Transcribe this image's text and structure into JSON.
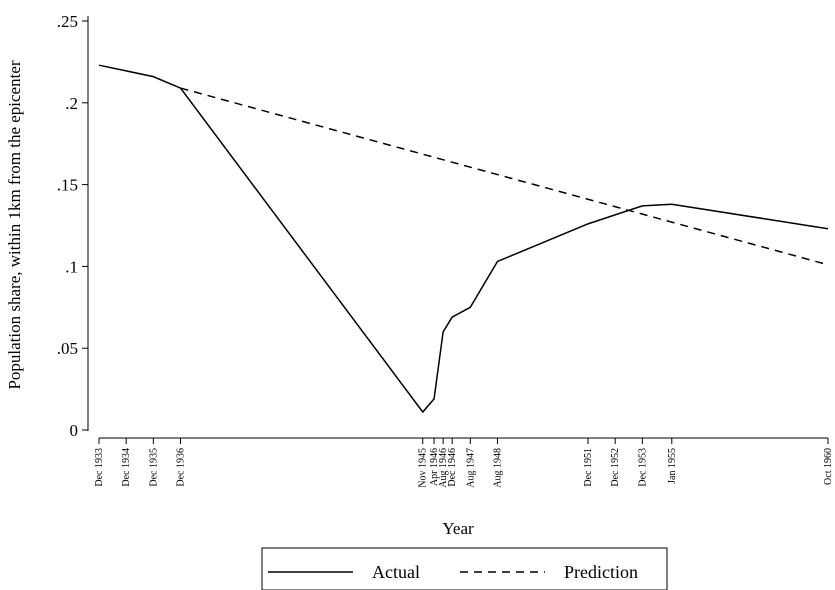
{
  "chart_data": {
    "type": "line",
    "y_label": "Population share, within 1km from the epicenter",
    "x_label": "Year",
    "xlim": [
      "Dec 1933",
      "Oct 1960"
    ],
    "xticks": [
      "Dec 1933",
      "Dec 1934",
      "Dec 1935",
      "Dec 1936",
      "Nov 1945",
      "Apr 1946",
      "Aug 1946",
      "Dec 1946",
      "Aug 1947",
      "Aug 1948",
      "Dec 1951",
      "Dec 1952",
      "Dec 1953",
      "Jan 1955",
      "Oct 1960"
    ],
    "ylim": [
      0,
      0.25
    ],
    "yticks": [
      0,
      {
        "value": 0.05,
        "label": ".05"
      },
      {
        "value": 0.1,
        "label": ".1"
      },
      {
        "value": 0.15,
        "label": ".15"
      },
      {
        "value": 0.2,
        "label": ".2"
      },
      {
        "value": 0.25,
        "label": ".25"
      }
    ],
    "series": [
      {
        "name": "Actual",
        "color": "#000000",
        "dash": "none",
        "x": [
          "Dec 1933",
          "Dec 1934",
          "Dec 1935",
          "Dec 1936",
          "Nov 1945",
          "Apr 1946",
          "Aug 1946",
          "Dec 1946",
          "Aug 1947",
          "Aug 1948",
          "Dec 1951",
          "Dec 1953",
          "Jan 1955",
          "Oct 1960"
        ],
        "values": [
          0.223,
          0.2195,
          0.216,
          0.209,
          0.011,
          0.019,
          0.06,
          0.069,
          0.075,
          0.103,
          0.126,
          0.137,
          0.138,
          0.123
        ]
      },
      {
        "name": "Prediction",
        "color": "#000000",
        "dash": "8,6",
        "x": [
          "Dec 1936",
          "Oct 1960"
        ],
        "values": [
          0.209,
          0.101
        ]
      }
    ]
  }
}
